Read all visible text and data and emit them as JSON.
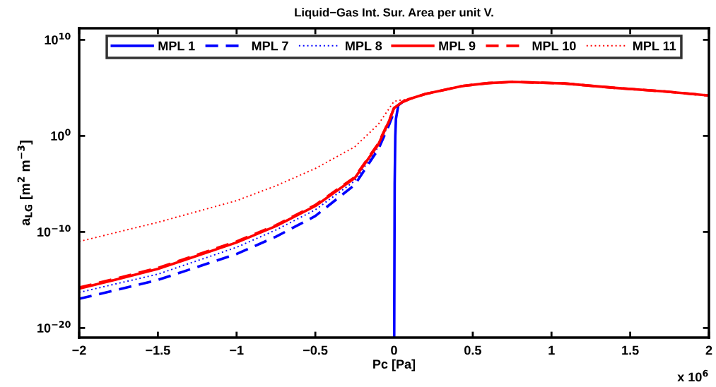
{
  "chart_data": {
    "type": "line",
    "title": "Liquid−Gas Int. Sur. Area per unit V.",
    "xlabel": "Pc [Pa]",
    "ylabel": "a$_{LG}$ [m$^{2}$ m$^{−3}$]",
    "annotations": [
      "x 10$^{6}$"
    ],
    "log": "y",
    "grid": false,
    "legend": "top",
    "xlim": [
      -2,
      2
    ],
    "xticks": [
      {
        "value": -2,
        "label": "−2"
      },
      {
        "value": -1.5,
        "label": "−1.5"
      },
      {
        "value": -1,
        "label": "−1"
      },
      {
        "value": -0.5,
        "label": "−0.5"
      },
      0,
      0.5,
      1,
      1.5,
      2
    ],
    "ylim": [
      1e-21,
      160000000000.0
    ],
    "yticks": [
      {
        "value": 1e-20,
        "label": "10$^{−20}$"
      },
      {
        "value": 1e-10,
        "label": "10$^{−10}$"
      },
      {
        "value": 1,
        "label": "10$^{0}$"
      },
      {
        "value": 10000000000.0,
        "label": "10$^{10}$"
      }
    ],
    "series": [
      {
        "name": "MPL 1",
        "color": "#0000ff",
        "line_style": "solid",
        "x": [
          0.001,
          0.004,
          0.008,
          0.012,
          0.027,
          0.05
        ],
        "values": [
          1e-21,
          1e-05,
          1,
          58,
          1500,
          3000
        ]
      },
      {
        "name": "MPL 7",
        "color": "#0000ff",
        "line_style": "dashed",
        "x": [
          -2,
          -1.75,
          -1.5,
          -1,
          -0.75,
          -0.5,
          -0.25,
          -0.1,
          -0.03,
          0
        ],
        "values": [
          1.1e-17,
          1e-16,
          1e-15,
          5e-13,
          3.2e-11,
          4.5e-09,
          7.9e-06,
          0.04,
          15.8,
          316
        ]
      },
      {
        "name": "MPL 8",
        "color": "#0000ff",
        "line_style": "dotted",
        "x": [
          -2,
          -1.75,
          -1.5,
          -1,
          -0.75,
          -0.5,
          -0.25,
          -0.1,
          -0.03,
          0
        ],
        "values": [
          5e-17,
          4.5e-16,
          4e-15,
          2.5e-12,
          1.6e-10,
          2e-08,
          2e-05,
          0.071,
          25,
          631
        ]
      },
      {
        "name": "MPL 9",
        "color": "#ff0000",
        "line_style": "solid",
        "x": [
          -2,
          -1.75,
          -1.5,
          -1,
          -0.75,
          -0.5,
          -0.25,
          -0.1,
          -0.03,
          0,
          0.05,
          0.1,
          0.2,
          0.435,
          0.6,
          0.757,
          1.08,
          1.4,
          1.72,
          2
        ],
        "values": [
          1.26e-16,
          1.26e-15,
          1.41e-14,
          7.9e-12,
          4e-10,
          5e-08,
          4e-05,
          0.126,
          39.8,
          794,
          3162,
          7079,
          22900,
          158000,
          316000,
          417000,
          288000,
          100000,
          41700,
          15800
        ]
      },
      {
        "name": "MPL 10",
        "color": "#ff0000",
        "line_style": "dashed",
        "x": [
          -2,
          -1.75,
          -1.5,
          -1,
          -0.75,
          -0.5,
          -0.25,
          -0.1,
          -0.03,
          0,
          0.05,
          0.1,
          0.2,
          0.435,
          0.6,
          0.757,
          1.08,
          1.4,
          1.72,
          2
        ],
        "values": [
          1.6e-16,
          1.6e-15,
          1.8e-14,
          1e-11,
          5e-10,
          6.3e-08,
          5e-05,
          0.16,
          45,
          800,
          3162,
          7079,
          22900,
          158000,
          316000,
          417000,
          288000,
          100000,
          41700,
          15800
        ]
      },
      {
        "name": "MPL 11",
        "color": "#ff0000",
        "line_style": "dotted",
        "x": [
          -2,
          -1.75,
          -1.5,
          -1,
          -0.75,
          -0.5,
          -0.25,
          -0.1,
          0,
          0.05,
          0.1,
          0.2,
          0.435,
          0.6,
          0.757,
          1.08,
          1.4,
          1.72,
          2
        ],
        "values": [
          1e-11,
          1e-10,
          1e-09,
          1.8e-07,
          6.3e-06,
          0.0004,
          0.071,
          15.8,
          3981,
          5623,
          7079,
          22900,
          158000,
          316000,
          417000,
          288000,
          100000,
          41700,
          15800
        ]
      }
    ]
  }
}
